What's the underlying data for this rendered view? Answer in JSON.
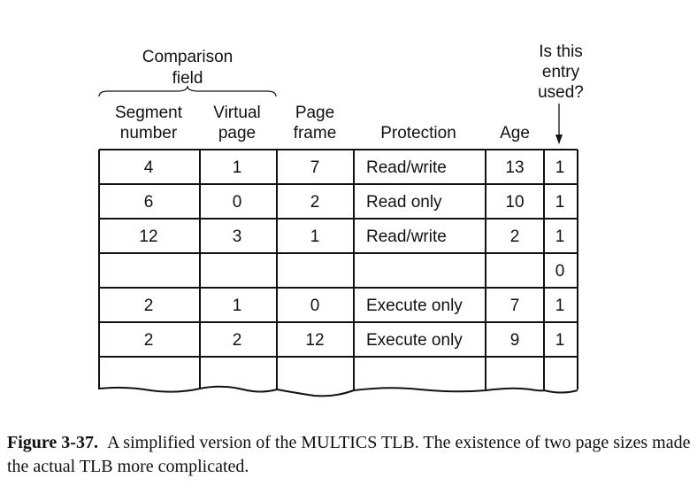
{
  "figure": {
    "comparison_label": [
      "Comparison",
      "field"
    ],
    "used_label": [
      "Is this",
      "entry",
      "used?"
    ],
    "columns": [
      [
        "Segment",
        "number"
      ],
      [
        "Virtual",
        "page"
      ],
      [
        "Page",
        "frame"
      ],
      [
        "Protection"
      ],
      [
        "Age"
      ],
      []
    ],
    "rows": [
      [
        "4",
        "1",
        "7",
        "Read/write",
        "13",
        "1"
      ],
      [
        "6",
        "0",
        "2",
        "Read only",
        "10",
        "1"
      ],
      [
        "12",
        "3",
        "1",
        "Read/write",
        "2",
        "1"
      ],
      [
        "",
        "",
        "",
        "",
        "",
        "0"
      ],
      [
        "2",
        "1",
        "0",
        "Execute only",
        "7",
        "1"
      ],
      [
        "2",
        "2",
        "12",
        "Execute only",
        "9",
        "1"
      ],
      [
        "",
        "",
        "",
        "",
        "",
        ""
      ]
    ]
  },
  "caption": {
    "label": "Figure 3-37.",
    "text": "A simplified version of the MULTICS TLB.  The existence of two page sizes made the actual TLB more complicated."
  }
}
